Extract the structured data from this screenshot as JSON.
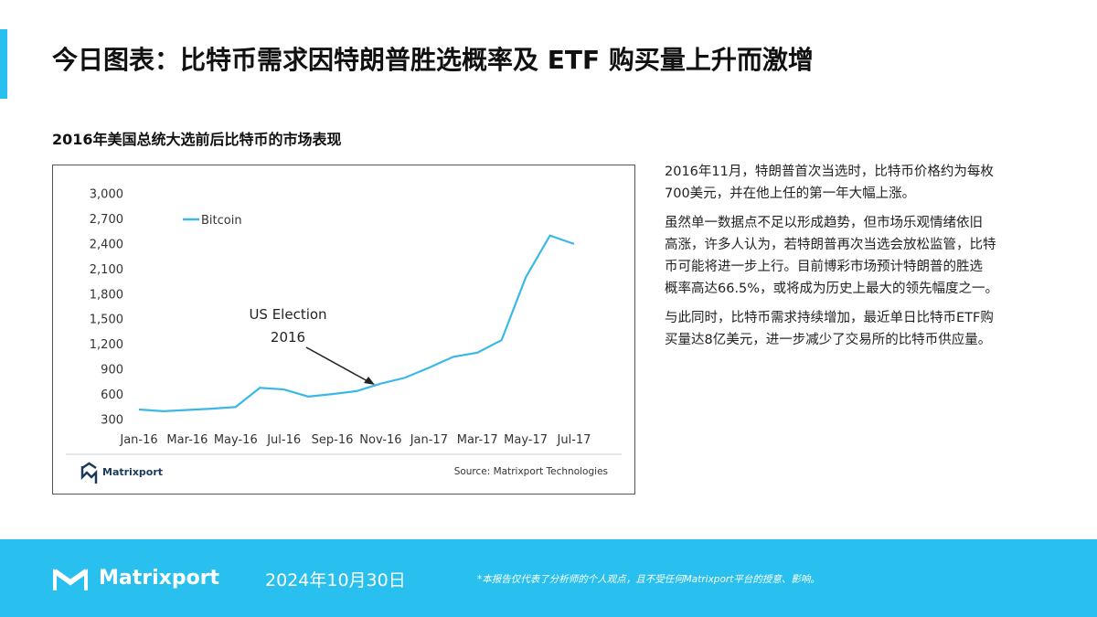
{
  "header": {
    "title": "今日图表：比特币需求因特朗普胜选概率及 ETF 购买量上升而激增",
    "subtitle": "2016年美国总统大选前后比特币的市场表现"
  },
  "chart_data": {
    "type": "line",
    "categories": [
      "Jan-16",
      null,
      "Mar-16",
      null,
      "May-16",
      null,
      "Jul-16",
      null,
      "Sep-16",
      null,
      "Nov-16",
      null,
      "Jan-17",
      null,
      "Mar-17",
      null,
      "May-17",
      null,
      "Jul-17"
    ],
    "series": [
      {
        "name": "Bitcoin",
        "color": "#3bb8e6",
        "values": [
          420,
          400,
          415,
          430,
          450,
          680,
          660,
          575,
          605,
          640,
          730,
          800,
          920,
          1050,
          1100,
          1250,
          2000,
          2500,
          2400
        ]
      }
    ],
    "ylim": [
      300,
      3000
    ],
    "yticks": [
      300,
      600,
      900,
      {
        "value": 1200,
        "label": "1,200"
      },
      {
        "value": 1500,
        "label": "1,500"
      },
      {
        "value": 1800,
        "label": "1,800"
      },
      {
        "value": 2100,
        "label": "2,100"
      },
      {
        "value": 2400,
        "label": "2,400"
      },
      {
        "value": 2700,
        "label": "2,700"
      },
      {
        "value": 3000,
        "label": "3,000"
      }
    ],
    "grid": false,
    "legend": "top-left",
    "annotation": [
      "US Election",
      "2016"
    ],
    "logo": "Matrixport",
    "source": "Source: Matrixport Technologies"
  },
  "paragraphs": [
    [
      "2016年11月，特朗普首次当选时，比特币价格约为每枚",
      "700美元，并在他上任的第一年大幅上涨。"
    ],
    [
      "虽然单一数据点不足以形成趋势，但市场乐观情绪依旧",
      "高涨，许多人认为，若特朗普再次当选会放松监管，比特",
      "币可能将进一步上行。目前博彩市场预计特朗普的胜选",
      "概率高达66.5%，或将成为历史上最大的领先幅度之一。"
    ],
    [
      "与此同时，比特币需求持续增加，最近单日比特币ETF购",
      "买量达8亿美元，进一步减少了交易所的比特币供应量。"
    ]
  ],
  "footer": {
    "brand": "Matrixport",
    "date": "2024年10月30日",
    "disclaimer": "*本报告仅代表了分析师的个人观点，且不受任何Matrixport平台的授意、影响。"
  }
}
